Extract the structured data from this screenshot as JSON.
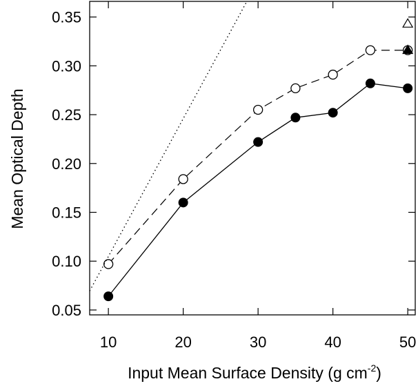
{
  "chart_data": {
    "type": "line",
    "xlabel_text": "Input Mean Surface Density (g cm",
    "xlabel_sup": "-2",
    "xlabel_close": ")",
    "ylabel": "Mean Optical Depth",
    "xlim": [
      7.5,
      51
    ],
    "ylim": [
      0.045,
      0.366
    ],
    "x_ticks": [
      10,
      20,
      30,
      40,
      50
    ],
    "x_tick_labels": [
      "10",
      "20",
      "30",
      "40",
      "50"
    ],
    "y_ticks": [
      0.05,
      0.1,
      0.15,
      0.2,
      0.25,
      0.3,
      0.35
    ],
    "y_tick_labels": [
      "0.05",
      "0.10",
      "0.15",
      "0.20",
      "0.25",
      "0.30",
      "0.35"
    ],
    "grid": false,
    "series": [
      {
        "style": "solid-line-filled-circles",
        "x": [
          10,
          20,
          30,
          35,
          40,
          45,
          50
        ],
        "y": [
          0.064,
          0.16,
          0.222,
          0.247,
          0.252,
          0.282,
          0.277
        ]
      },
      {
        "style": "dashed-line-open-circles",
        "x": [
          10,
          20,
          30,
          35,
          40,
          45,
          50
        ],
        "y": [
          0.097,
          0.184,
          0.255,
          0.277,
          0.291,
          0.316,
          0.316
        ]
      },
      {
        "style": "dotted-line",
        "x": [
          7.5,
          28.5
        ],
        "y": [
          0.0695,
          0.366
        ]
      },
      {
        "style": "open-triangle",
        "x": [
          50
        ],
        "y": [
          0.343
        ]
      },
      {
        "style": "filled-triangle",
        "x": [
          50
        ],
        "y": [
          0.316
        ]
      }
    ]
  }
}
